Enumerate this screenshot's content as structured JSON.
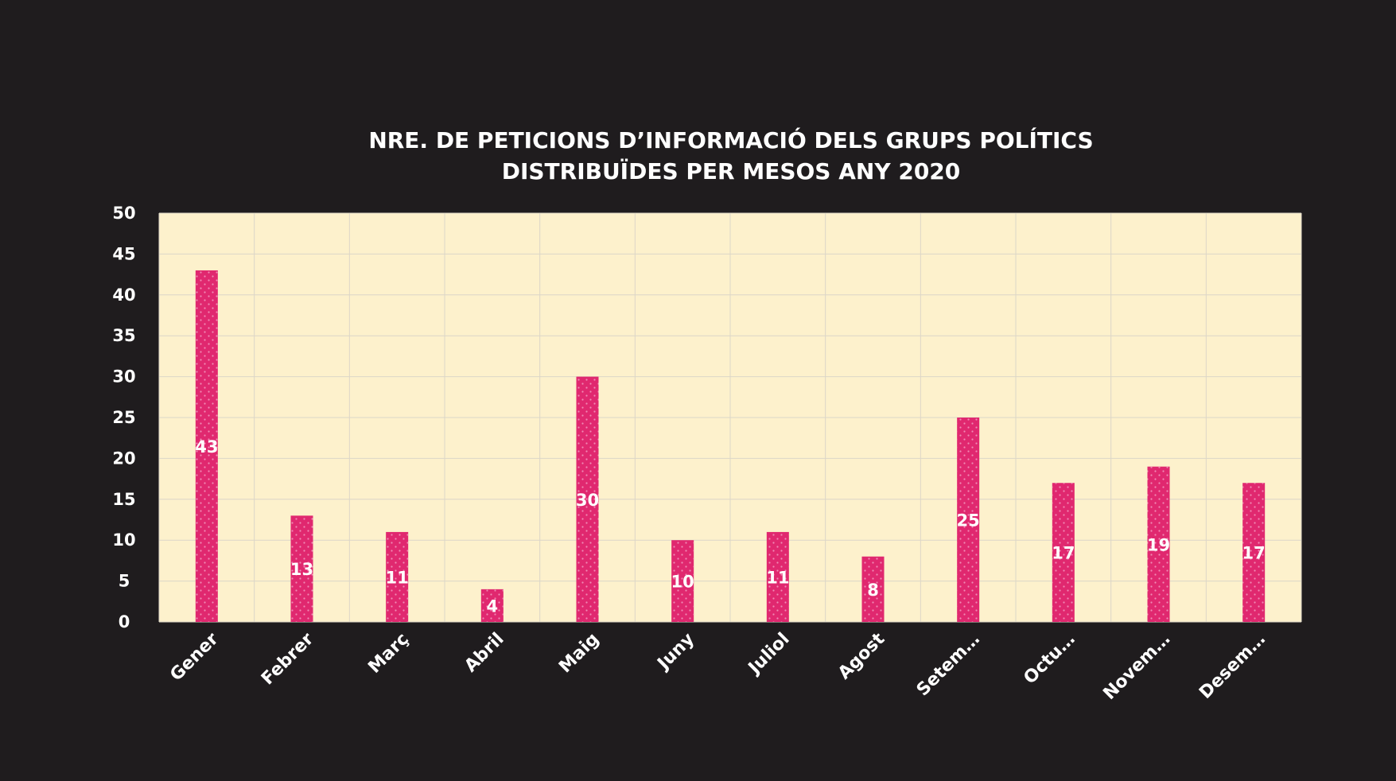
{
  "chart_data": {
    "type": "bar",
    "title_lines": [
      "NRE. DE PETICIONS D’INFORMACIÓ DELS GRUPS POLÍTICS",
      "DISTRIBUÏDES PER MESOS ANY 2020"
    ],
    "xlabel": "",
    "ylabel": "",
    "categories": [
      "Gener",
      "Febrer",
      "Març",
      "Abril",
      "Maig",
      "Juny",
      "Juliol",
      "Agost",
      "Setem…",
      "Octu…",
      "Novem…",
      "Desem…"
    ],
    "values": [
      43,
      13,
      11,
      4,
      30,
      10,
      11,
      8,
      25,
      17,
      19,
      17
    ],
    "ylim": [
      0,
      50
    ],
    "yticks": [
      0,
      5,
      10,
      15,
      20,
      25,
      30,
      35,
      40,
      45,
      50
    ],
    "grid": true,
    "legend": "none",
    "colors": {
      "background": "#1f1c1e",
      "plot_area": "#fdf1cc",
      "grid": "#dcd6c8",
      "bar": "#e0286f",
      "bar_dots": "#f08ab4",
      "text": "#ffffff"
    }
  }
}
